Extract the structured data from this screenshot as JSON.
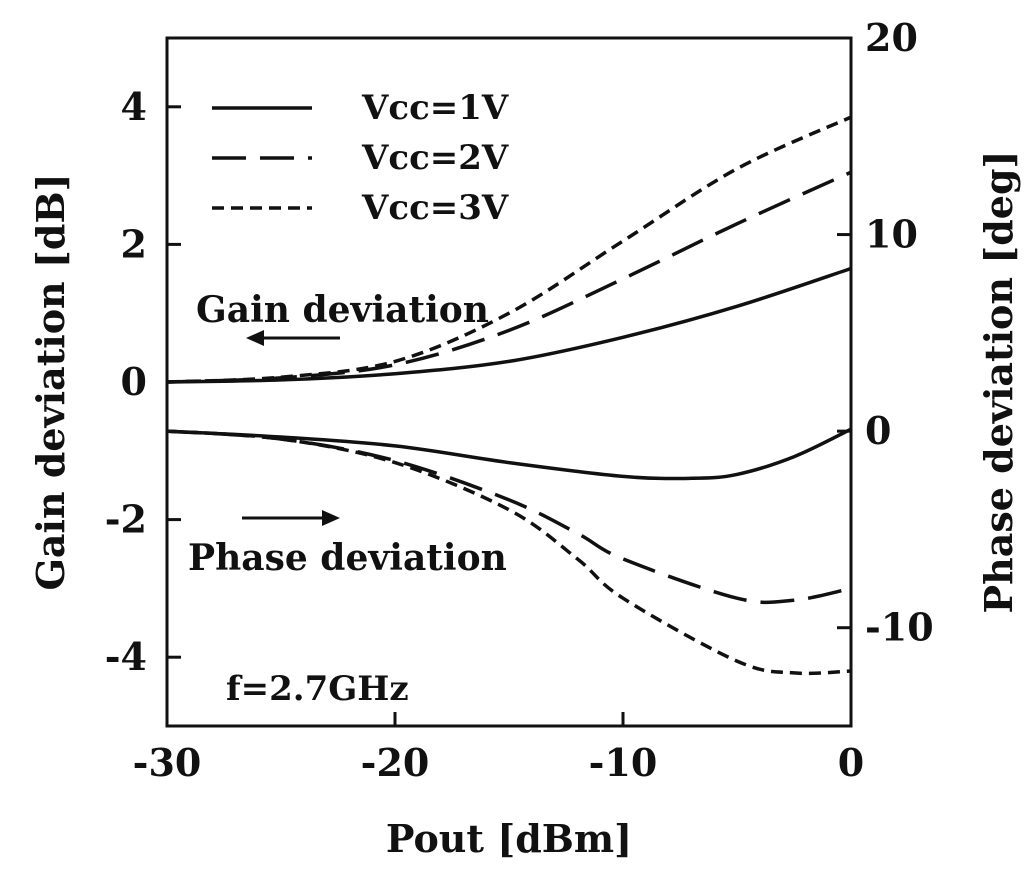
{
  "chart_data": {
    "type": "line",
    "title": "",
    "xlabel": "Pout [dBm]",
    "ylabel": "Gain deviation [dB]",
    "y2label": "Phase deviation [deg]",
    "xlim": [
      -30,
      0
    ],
    "ylim": [
      -5,
      5
    ],
    "y2lim": [
      -15,
      20
    ],
    "xticks": [
      "-30",
      "-20",
      "-10",
      "0"
    ],
    "xtick_values": [
      -30,
      -20,
      -10,
      0
    ],
    "yticks": [
      "4",
      "2",
      "0",
      "-2",
      "-4"
    ],
    "ytick_values": [
      4,
      2,
      0,
      -2,
      -4
    ],
    "y2ticks": [
      "20",
      "10",
      "0",
      "-10"
    ],
    "y2tick_values": [
      20,
      10,
      0,
      -10
    ],
    "grid": false,
    "legend_position": "top-left",
    "annotations": {
      "gain": "Gain deviation",
      "phase": "Phase deviation",
      "freq": "f=2.7GHz"
    },
    "series": [
      {
        "name": "Vcc=1V",
        "axis": "left",
        "quantity": "gain",
        "style": "solid",
        "x": [
          -30,
          -25,
          -20,
          -15,
          -10,
          -5,
          0
        ],
        "values": [
          0.0,
          0.03,
          0.12,
          0.3,
          0.65,
          1.1,
          1.65
        ]
      },
      {
        "name": "Vcc=2V",
        "axis": "left",
        "quantity": "gain",
        "style": "dashed",
        "x": [
          -30,
          -25,
          -20,
          -15,
          -10,
          -5,
          0
        ],
        "values": [
          0.0,
          0.06,
          0.25,
          0.75,
          1.5,
          2.3,
          3.05
        ]
      },
      {
        "name": "Vcc=3V",
        "axis": "left",
        "quantity": "gain",
        "style": "dotted",
        "x": [
          -30,
          -25,
          -20,
          -15,
          -10,
          -5,
          0
        ],
        "values": [
          0.0,
          0.07,
          0.3,
          1.0,
          2.05,
          3.1,
          3.85
        ]
      },
      {
        "name": "Vcc=1V",
        "axis": "right",
        "quantity": "phase",
        "style": "solid",
        "x": [
          -30,
          -25,
          -20,
          -15,
          -10,
          -7,
          -5,
          -2.5,
          0
        ],
        "values": [
          0.0,
          -0.3,
          -0.75,
          -1.6,
          -2.3,
          -2.4,
          -2.2,
          -1.3,
          0.1
        ]
      },
      {
        "name": "Vcc=2V",
        "axis": "right",
        "quantity": "phase",
        "style": "dashed",
        "x": [
          -30,
          -25,
          -20,
          -15,
          -12,
          -10,
          -5,
          -2.5,
          0
        ],
        "values": [
          0.0,
          -0.4,
          -1.5,
          -3.5,
          -5.2,
          -6.5,
          -8.5,
          -8.6,
          -8.0
        ]
      },
      {
        "name": "Vcc=3V",
        "axis": "right",
        "quantity": "phase",
        "style": "dotted",
        "x": [
          -30,
          -25,
          -20,
          -15,
          -12,
          -10,
          -5,
          -2.5,
          0
        ],
        "values": [
          0.0,
          -0.4,
          -1.6,
          -4.0,
          -6.5,
          -8.5,
          -11.7,
          -12.3,
          -12.2
        ]
      }
    ],
    "legend": [
      {
        "label": "Vcc=1V",
        "style": "solid"
      },
      {
        "label": "Vcc=2V",
        "style": "dashed"
      },
      {
        "label": "Vcc=3V",
        "style": "dotted"
      }
    ]
  }
}
